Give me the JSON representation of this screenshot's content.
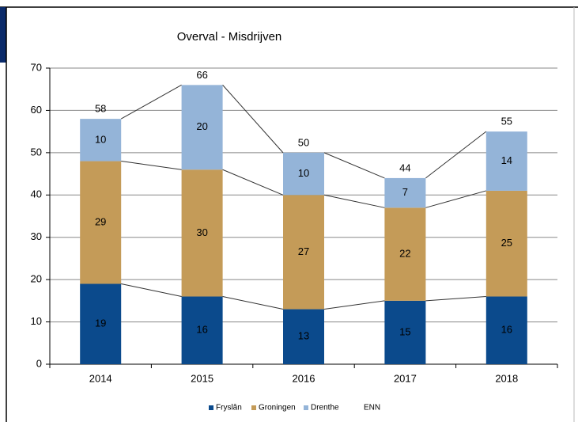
{
  "chart_data": {
    "type": "stacked_bar",
    "title": "Overval - Misdrijven",
    "categories": [
      "2014",
      "2015",
      "2016",
      "2017",
      "2018"
    ],
    "series": [
      {
        "name": "Fryslân",
        "color": "#0b4a8c",
        "values": [
          19,
          16,
          13,
          15,
          16
        ]
      },
      {
        "name": "Groningen",
        "color": "#c49b58",
        "values": [
          29,
          30,
          27,
          22,
          25
        ]
      },
      {
        "name": "Drenthe",
        "color": "#94b4d8",
        "values": [
          10,
          20,
          10,
          7,
          14
        ]
      }
    ],
    "totals": {
      "name": "ENN",
      "values": [
        58,
        66,
        50,
        44,
        55
      ]
    },
    "ylim": [
      0,
      70
    ],
    "yticks": [
      0,
      10,
      20,
      30,
      40,
      50,
      60,
      70
    ],
    "grid": true,
    "legend": "bottom"
  }
}
